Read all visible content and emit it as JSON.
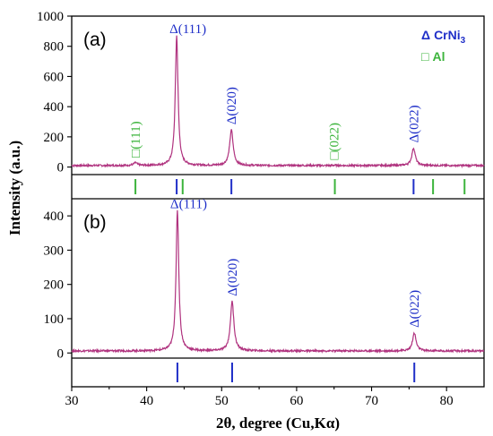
{
  "chart_data": {
    "type": "line",
    "xlabel": "2θ, degree (Cu,Kα)",
    "ylabel": "Intensity (a.u.)",
    "xlim": [
      30,
      85
    ],
    "x_ticks": [
      "30",
      "40",
      "50",
      "60",
      "70",
      "80"
    ],
    "colors": {
      "pattern": "#b0337f",
      "crni3": "#1f2fc8",
      "al": "#3cb43c"
    },
    "legend": [
      {
        "symbol": "Δ",
        "label": "CrNi",
        "sub": "3",
        "color": "#1f2fc8"
      },
      {
        "symbol": "□",
        "label": "Al",
        "sub": "",
        "color": "#3cb43c"
      }
    ],
    "panels": [
      {
        "label": "(a)",
        "ylim": [
          -50,
          1000
        ],
        "y_ticks": [
          0,
          200,
          400,
          600,
          800,
          1000
        ],
        "y_tick_labels": [
          "0",
          "200",
          "400",
          "600",
          "800",
          "1000"
        ],
        "baseline": 10,
        "peaks": [
          {
            "x": 38.5,
            "y": 28,
            "label": "□(111)",
            "phase": "al"
          },
          {
            "x": 44.0,
            "y": 870,
            "label": "Δ(111)",
            "phase": "crni3"
          },
          {
            "x": 51.3,
            "y": 245,
            "label": "Δ(020)",
            "phase": "crni3"
          },
          {
            "x": 65.0,
            "y": 12,
            "label": "□(022)",
            "phase": "al"
          },
          {
            "x": 75.6,
            "y": 125,
            "label": "Δ(022)",
            "phase": "crni3"
          }
        ],
        "crni3_ref": [
          44.0,
          51.3,
          75.6
        ],
        "al_ref": [
          38.5,
          44.8,
          65.1,
          78.2,
          82.4
        ]
      },
      {
        "label": "(b)",
        "ylim": [
          -15,
          450
        ],
        "y_ticks": [
          0,
          100,
          200,
          300,
          400
        ],
        "y_tick_labels": [
          "0",
          "100",
          "200",
          "300",
          "400"
        ],
        "baseline": 6,
        "peaks": [
          {
            "x": 44.1,
            "y": 415,
            "label": "Δ(111)",
            "phase": "crni3"
          },
          {
            "x": 51.4,
            "y": 150,
            "label": "Δ(020)",
            "phase": "crni3"
          },
          {
            "x": 75.7,
            "y": 58,
            "label": "Δ(022)",
            "phase": "crni3"
          }
        ],
        "crni3_ref": [
          44.1,
          51.4,
          75.7
        ],
        "al_ref": []
      }
    ]
  }
}
